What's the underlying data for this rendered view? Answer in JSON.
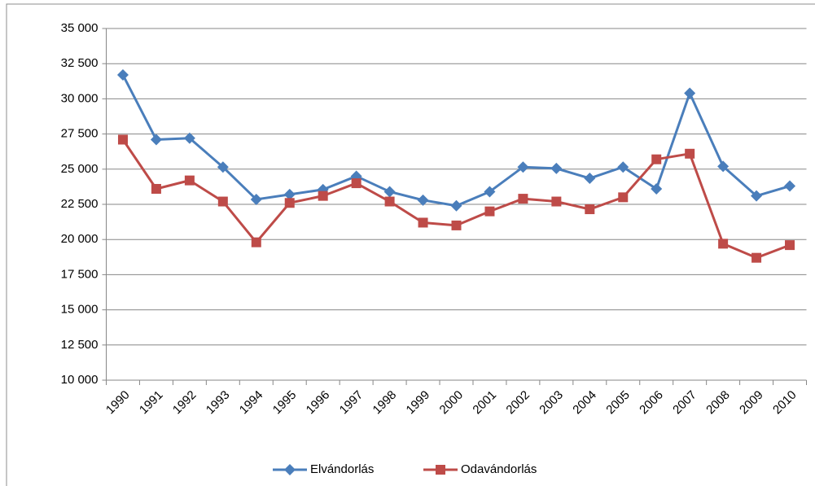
{
  "chart_data": {
    "type": "line",
    "categories": [
      "1990",
      "1991",
      "1992",
      "1993",
      "1994",
      "1995",
      "1996",
      "1997",
      "1998",
      "1999",
      "2000",
      "2001",
      "2002",
      "2003",
      "2004",
      "2005",
      "2006",
      "2007",
      "2008",
      "2009",
      "2010"
    ],
    "series": [
      {
        "name": "Elvándorlás",
        "color": "#4a7ebb",
        "marker": "diamond",
        "values": [
          31700,
          27100,
          27200,
          25150,
          22850,
          23200,
          23550,
          24500,
          23400,
          22800,
          22400,
          23400,
          25150,
          25050,
          24350,
          25150,
          23600,
          30400,
          25200,
          23100,
          23800
        ]
      },
      {
        "name": "Odavándorlás",
        "color": "#be4b48",
        "marker": "square",
        "values": [
          27100,
          23600,
          24200,
          22700,
          19800,
          22600,
          23100,
          24000,
          22700,
          21200,
          21000,
          22000,
          22900,
          22700,
          22150,
          23000,
          25700,
          26100,
          19700,
          18700,
          19600
        ]
      }
    ],
    "ylim": [
      10000,
      35000
    ],
    "yticks": [
      {
        "value": 10000,
        "label": "10 000"
      },
      {
        "value": 12500,
        "label": "12 500"
      },
      {
        "value": 15000,
        "label": "15 000"
      },
      {
        "value": 17500,
        "label": "17 500"
      },
      {
        "value": 20000,
        "label": "20 000"
      },
      {
        "value": 22500,
        "label": "22 500"
      },
      {
        "value": 25000,
        "label": "25 000"
      },
      {
        "value": 27500,
        "label": "27 500"
      },
      {
        "value": 30000,
        "label": "30 000"
      },
      {
        "value": 32500,
        "label": "32 500"
      },
      {
        "value": 35000,
        "label": "35 000"
      }
    ],
    "grid": true,
    "legend": "bottom"
  }
}
